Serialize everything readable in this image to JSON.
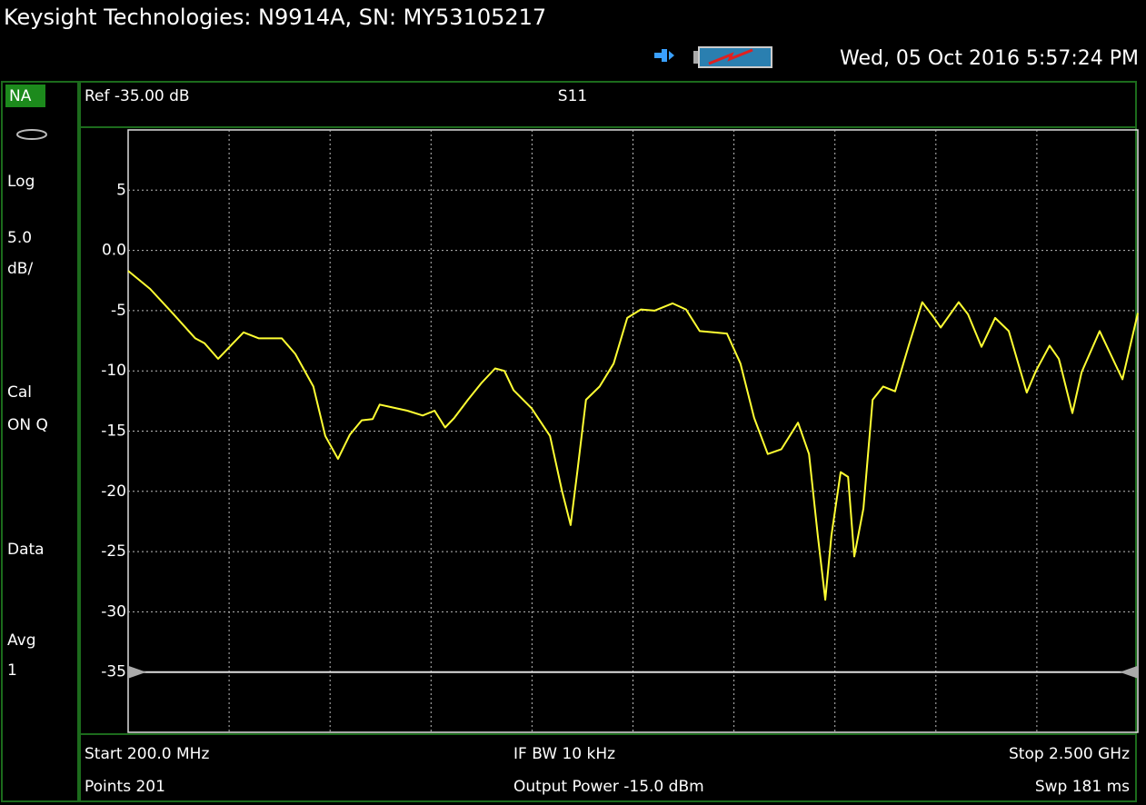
{
  "header": {
    "title": "Keysight Technologies: N9914A, SN: MY53105217",
    "datetime": "Wed, 05 Oct 2016 5:57:24 PM"
  },
  "left_panel": {
    "mode": "NA",
    "scale_type": "Log",
    "scale": "5.0",
    "scale_unit": "dB/",
    "cal": "Cal",
    "cal_state": "ON Q",
    "trace": "Data",
    "avg": "Avg",
    "avg_count": "1"
  },
  "chart_data": {
    "type": "line",
    "ref_label": "Ref -35.00 dB",
    "ref_level": -35,
    "x": [
      200,
      250,
      301,
      353,
      374,
      405,
      426,
      463,
      498,
      550,
      581,
      622,
      649,
      678,
      705,
      732,
      757,
      773,
      798,
      836,
      871,
      898,
      922,
      943,
      974,
      1005,
      1036,
      1057,
      1078,
      1119,
      1161,
      1188,
      1208,
      1223,
      1243,
      1274,
      1306,
      1337,
      1368,
      1399,
      1440,
      1471,
      1502,
      1564,
      1595,
      1626,
      1657,
      1688,
      1726,
      1751,
      1771,
      1788,
      1802,
      1823,
      1840,
      1854,
      1875,
      1896,
      1920,
      1947,
      1978,
      2009,
      2036,
      2051,
      2092,
      2113,
      2144,
      2175,
      2206,
      2247,
      2268,
      2299,
      2320,
      2351,
      2372,
      2413,
      2465,
      2500
    ],
    "series": [
      {
        "name": "S11",
        "color": "#ffff33",
        "values": [
          -1.7,
          -3.2,
          -5.2,
          -7.3,
          -7.7,
          -9.0,
          -8.2,
          -6.8,
          -7.3,
          -7.3,
          -8.6,
          -11.3,
          -15.4,
          -17.3,
          -15.3,
          -14.1,
          -14.0,
          -12.8,
          -13.0,
          -13.3,
          -13.7,
          -13.3,
          -14.7,
          -13.9,
          -12.4,
          -11.0,
          -9.8,
          -10.0,
          -11.6,
          -13.1,
          -15.4,
          -19.9,
          -22.8,
          -18.4,
          -12.4,
          -11.3,
          -9.4,
          -5.6,
          -4.9,
          -5.0,
          -4.4,
          -4.9,
          -6.7,
          -6.9,
          -9.4,
          -13.9,
          -16.9,
          -16.5,
          -14.3,
          -16.9,
          -23.7,
          -29.0,
          -23.7,
          -18.4,
          -18.8,
          -25.4,
          -21.4,
          -12.4,
          -11.3,
          -11.7,
          -7.9,
          -4.3,
          -5.6,
          -6.4,
          -4.3,
          -5.3,
          -8.0,
          -5.6,
          -6.7,
          -11.8,
          -10.0,
          -7.9,
          -9.0,
          -13.5,
          -10.1,
          -6.7,
          -10.7,
          -5.2
        ]
      }
    ],
    "xlim": [
      200,
      2500
    ],
    "xticks": [
      430,
      660,
      890,
      1120,
      1350,
      1580,
      1810,
      2040,
      2270
    ],
    "ylim": [
      -40,
      10
    ],
    "yticks": [
      5,
      {
        "value": 0,
        "label": "0.0"
      },
      -5,
      -10,
      -15,
      -20,
      -25,
      -30,
      -35
    ],
    "grid": true
  },
  "footer": {
    "start": "Start 200.0 MHz",
    "points": "Points 201",
    "if_bw": "IF BW 10 kHz",
    "output_power": "Output Power -15.0 dBm",
    "stop": "Stop 2.500 GHz",
    "sweep": "Swp 181 ms"
  }
}
